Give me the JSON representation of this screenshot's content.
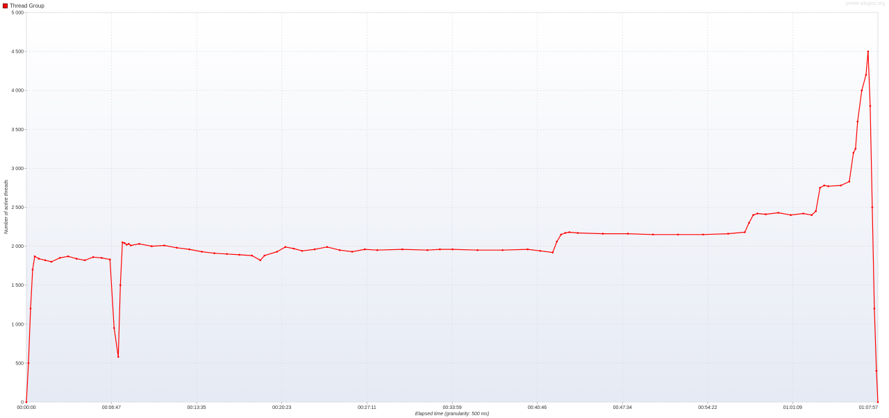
{
  "legend": {
    "label": "Thread Group",
    "color": "#ff0000"
  },
  "watermark": "jmeter-plugins.org",
  "chart_data": {
    "type": "line",
    "title": "",
    "xlabel": "Elapsed time (granularity: 500 ms)",
    "ylabel": "Number of active threads",
    "xlim": [
      "00:00:00",
      "01:07:57"
    ],
    "ylim": [
      0,
      5000
    ],
    "grid": true,
    "legend_position": "top-left",
    "x_ticks": [
      "00:00:00",
      "00:06:47",
      "00:13:35",
      "00:20:23",
      "00:27:11",
      "00:33:59",
      "00:40:46",
      "00:47:34",
      "00:54:22",
      "01:01:09",
      "01:07:57"
    ],
    "y_ticks": [
      "0",
      "500",
      "1 000",
      "1 500",
      "2 000",
      "2 500",
      "3 000",
      "3 500",
      "4 000",
      "4 500",
      "5 000"
    ],
    "y_tick_values": [
      0,
      500,
      1000,
      1500,
      2000,
      2500,
      3000,
      3500,
      4000,
      4500,
      5000
    ],
    "series": [
      {
        "name": "Thread Group",
        "color": "#ff0000",
        "x": [
          "00:00:00",
          "00:00:10",
          "00:00:20",
          "00:00:30",
          "00:00:40",
          "00:01:00",
          "00:01:30",
          "00:02:00",
          "00:02:40",
          "00:03:20",
          "00:04:00",
          "00:04:40",
          "00:05:20",
          "00:06:00",
          "00:06:40",
          "00:07:00",
          "00:07:20",
          "00:07:30",
          "00:07:40",
          "00:07:50",
          "00:08:00",
          "00:08:10",
          "00:08:20",
          "00:09:00",
          "00:10:00",
          "00:11:00",
          "00:12:00",
          "00:13:00",
          "00:14:00",
          "00:15:00",
          "00:16:00",
          "00:17:00",
          "00:18:00",
          "00:18:40",
          "00:19:00",
          "00:20:00",
          "00:20:40",
          "00:21:20",
          "00:22:00",
          "00:23:00",
          "00:24:00",
          "00:25:00",
          "00:26:00",
          "00:27:00",
          "00:28:00",
          "00:30:00",
          "00:32:00",
          "00:33:00",
          "00:34:00",
          "00:36:00",
          "00:38:00",
          "00:40:00",
          "00:41:00",
          "00:42:00",
          "00:42:20",
          "00:42:40",
          "00:43:00",
          "00:43:20",
          "00:44:00",
          "00:46:00",
          "00:48:00",
          "00:50:00",
          "00:52:00",
          "00:54:00",
          "00:56:00",
          "00:57:20",
          "00:57:40",
          "00:58:00",
          "00:58:20",
          "00:59:00",
          "01:00:00",
          "01:01:00",
          "01:02:00",
          "01:02:40",
          "01:03:00",
          "01:03:20",
          "01:03:40",
          "01:04:00",
          "01:05:00",
          "01:05:40",
          "01:06:00",
          "01:06:10",
          "01:06:20",
          "01:06:40",
          "01:07:00",
          "01:07:10",
          "01:07:20",
          "01:07:30",
          "01:07:40",
          "01:07:50",
          "01:07:57"
        ],
        "values": [
          0,
          500,
          1200,
          1700,
          1870,
          1840,
          1820,
          1800,
          1850,
          1870,
          1840,
          1820,
          1860,
          1850,
          1830,
          950,
          580,
          1500,
          2050,
          2040,
          2020,
          2030,
          2010,
          2030,
          2000,
          2010,
          1980,
          1960,
          1930,
          1910,
          1900,
          1890,
          1880,
          1820,
          1880,
          1930,
          1990,
          1970,
          1940,
          1960,
          1990,
          1950,
          1930,
          1960,
          1950,
          1960,
          1950,
          1960,
          1960,
          1950,
          1950,
          1960,
          1940,
          1920,
          2060,
          2150,
          2170,
          2180,
          2170,
          2160,
          2160,
          2150,
          2150,
          2150,
          2160,
          2180,
          2300,
          2400,
          2420,
          2410,
          2430,
          2400,
          2420,
          2400,
          2450,
          2750,
          2780,
          2770,
          2780,
          2830,
          3200,
          3250,
          3600,
          4000,
          4200,
          4500,
          3800,
          2500,
          1200,
          400,
          0
        ]
      }
    ]
  }
}
